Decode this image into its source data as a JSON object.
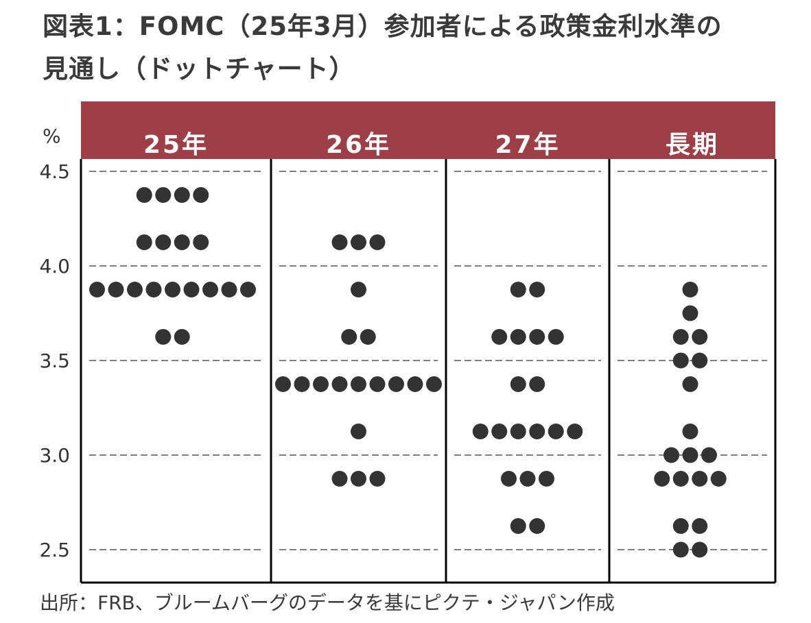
{
  "title_lines": [
    "図表1：FOMC（25年3月）参加者による政策金利水準の",
    "見通し（ドットチャート）"
  ],
  "source": "出所：FRB、ブルームバーグのデータを基にピクテ・ジャパン作成",
  "colors": {
    "header": "#9e3f47",
    "dot": "#333333",
    "grid": "#555555"
  },
  "chart_data": {
    "type": "scatter",
    "subtype": "dot-plot",
    "ylabel": "%",
    "ylim": [
      2.5,
      4.5
    ],
    "yticks": [
      "4.5",
      "4.0",
      "3.5",
      "3.0",
      "2.5"
    ],
    "grid": true,
    "categories": [
      "25年",
      "26年",
      "27年",
      "長期"
    ],
    "columns": [
      {
        "label": "25年",
        "dots": [
          {
            "rate": 4.375,
            "count": 4
          },
          {
            "rate": 4.125,
            "count": 4
          },
          {
            "rate": 3.875,
            "count": 9
          },
          {
            "rate": 3.625,
            "count": 2
          }
        ]
      },
      {
        "label": "26年",
        "dots": [
          {
            "rate": 4.125,
            "count": 3
          },
          {
            "rate": 3.875,
            "count": 1
          },
          {
            "rate": 3.625,
            "count": 2
          },
          {
            "rate": 3.375,
            "count": 9
          },
          {
            "rate": 3.125,
            "count": 1
          },
          {
            "rate": 2.875,
            "count": 3
          }
        ]
      },
      {
        "label": "27年",
        "dots": [
          {
            "rate": 3.875,
            "count": 2
          },
          {
            "rate": 3.625,
            "count": 4
          },
          {
            "rate": 3.375,
            "count": 2
          },
          {
            "rate": 3.125,
            "count": 6
          },
          {
            "rate": 2.875,
            "count": 3
          },
          {
            "rate": 2.625,
            "count": 2
          }
        ]
      },
      {
        "label": "長期",
        "dots": [
          {
            "rate": 3.875,
            "count": 1
          },
          {
            "rate": 3.75,
            "count": 1
          },
          {
            "rate": 3.625,
            "count": 2
          },
          {
            "rate": 3.5,
            "count": 2
          },
          {
            "rate": 3.375,
            "count": 1
          },
          {
            "rate": 3.125,
            "count": 1
          },
          {
            "rate": 3.0,
            "count": 3
          },
          {
            "rate": 2.875,
            "count": 4
          },
          {
            "rate": 2.625,
            "count": 2
          },
          {
            "rate": 2.5,
            "count": 2
          }
        ]
      }
    ]
  }
}
